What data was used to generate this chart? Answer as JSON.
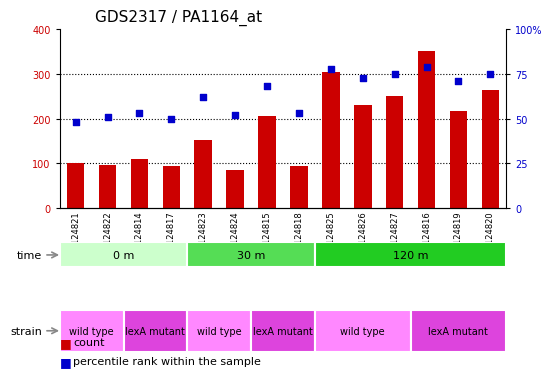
{
  "title": "GDS2317 / PA1164_at",
  "samples": [
    "GSM124821",
    "GSM124822",
    "GSM124814",
    "GSM124817",
    "GSM124823",
    "GSM124824",
    "GSM124815",
    "GSM124818",
    "GSM124825",
    "GSM124826",
    "GSM124827",
    "GSM124816",
    "GSM124819",
    "GSM124820"
  ],
  "bar_values": [
    100,
    95,
    110,
    93,
    152,
    86,
    205,
    93,
    305,
    230,
    250,
    352,
    218,
    265
  ],
  "dot_values": [
    48,
    51,
    53,
    50,
    62,
    52,
    68,
    53,
    78,
    73,
    75,
    79,
    71,
    75
  ],
  "bar_color": "#CC0000",
  "dot_color": "#0000CC",
  "left_ylim": [
    0,
    400
  ],
  "left_yticks": [
    0,
    100,
    200,
    300,
    400
  ],
  "right_yticks": [
    0,
    25,
    50,
    75,
    100
  ],
  "right_yticklabels": [
    "0",
    "25",
    "50",
    "75",
    "100%"
  ],
  "grid_values": [
    100,
    200,
    300
  ],
  "time_groups": [
    {
      "label": "0 m",
      "start": 0,
      "end": 4,
      "color": "#ccffcc"
    },
    {
      "label": "30 m",
      "start": 4,
      "end": 8,
      "color": "#55dd55"
    },
    {
      "label": "120 m",
      "start": 8,
      "end": 14,
      "color": "#22cc22"
    }
  ],
  "strain_groups": [
    {
      "label": "wild type",
      "start": 0,
      "end": 2,
      "color": "#ff88ff"
    },
    {
      "label": "lexA mutant",
      "start": 2,
      "end": 4,
      "color": "#dd44dd"
    },
    {
      "label": "wild type",
      "start": 4,
      "end": 6,
      "color": "#ff88ff"
    },
    {
      "label": "lexA mutant",
      "start": 6,
      "end": 8,
      "color": "#dd44dd"
    },
    {
      "label": "wild type",
      "start": 8,
      "end": 11,
      "color": "#ff88ff"
    },
    {
      "label": "lexA mutant",
      "start": 11,
      "end": 14,
      "color": "#dd44dd"
    }
  ],
  "time_label": "time",
  "strain_label": "strain",
  "legend_count_label": "count",
  "legend_percentile_label": "percentile rank within the sample",
  "axis_color_left": "#CC0000",
  "axis_color_right": "#0000CC",
  "title_fontsize": 11,
  "tick_fontsize": 7,
  "sample_fontsize": 6,
  "row_fontsize": 8,
  "legend_fontsize": 8
}
